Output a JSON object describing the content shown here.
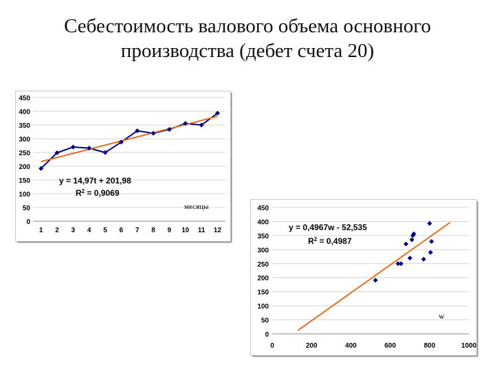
{
  "title_lines": [
    "Себестоимость валового объема основного",
    "производства (дебет счета 20)"
  ],
  "chart_data": [
    {
      "type": "line",
      "x": [
        1,
        2,
        3,
        4,
        5,
        6,
        7,
        8,
        9,
        10,
        11,
        12
      ],
      "series": [
        {
          "values": [
            192,
            249,
            270,
            266,
            250,
            288,
            329,
            320,
            334,
            356,
            350,
            393
          ],
          "color": "#000080"
        }
      ],
      "trendline": {
        "slope": 14.97,
        "intercept": 201.98,
        "color": "#E07020"
      },
      "equation": "y = 14,97t + 201,98",
      "r2_prefix": "R",
      "r2_suffix": " = 0,9069",
      "xlabel": "месяцы",
      "ylim": [
        0,
        450
      ],
      "yticks": [
        0,
        50,
        100,
        150,
        200,
        250,
        300,
        350,
        400,
        450
      ],
      "xticks": [
        1,
        2,
        3,
        4,
        5,
        6,
        7,
        8,
        9,
        10,
        11,
        12
      ],
      "grid": true
    },
    {
      "type": "scatter",
      "points": [
        [
          525,
          191
        ],
        [
          640,
          250
        ],
        [
          655,
          250
        ],
        [
          680,
          320
        ],
        [
          700,
          270
        ],
        [
          710,
          335
        ],
        [
          715,
          350
        ],
        [
          720,
          356
        ],
        [
          770,
          266
        ],
        [
          800,
          393
        ],
        [
          805,
          290
        ],
        [
          810,
          329
        ]
      ],
      "point_color": "#000080",
      "trendline": {
        "slope": 0.4967,
        "intercept": -52.535,
        "x_range": [
          130,
          905
        ],
        "color": "#E07020"
      },
      "equation": "y = 0,4967w - 52,535",
      "r2_prefix": "R",
      "r2_suffix": " = 0,4987",
      "xlabel": "w",
      "xlim": [
        0,
        1000
      ],
      "ylim": [
        0,
        450
      ],
      "xticks": [
        0,
        200,
        400,
        600,
        800,
        1000
      ],
      "yticks": [
        0,
        50,
        100,
        150,
        200,
        250,
        300,
        350,
        400,
        450
      ],
      "grid": true
    }
  ]
}
